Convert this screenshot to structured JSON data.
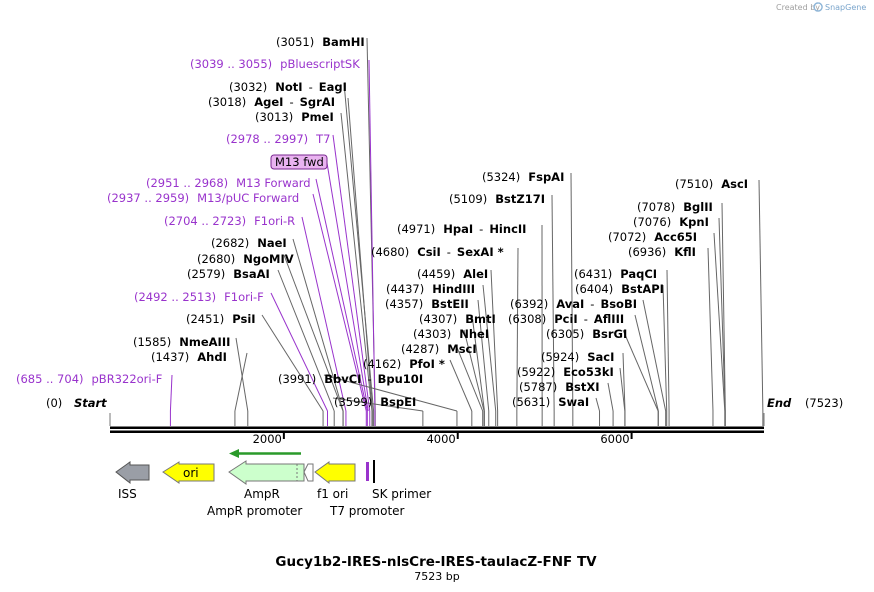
{
  "credit": {
    "text": "Created by",
    "brand": "SnapGene"
  },
  "title": "Gucy1b2-IRES-nlsCre-IRES-taulacZ-FNF TV",
  "length_label": "7523 bp",
  "total_bp": 7523,
  "ends": {
    "start_pos": "(0)",
    "start": "Start",
    "end": "End",
    "end_pos": "(7523)"
  },
  "ruler": [
    {
      "bp": 2000,
      "label": "2000"
    },
    {
      "bp": 4000,
      "label": "4000"
    },
    {
      "bp": 6000,
      "label": "6000"
    }
  ],
  "sites": [
    {
      "pos": "(3051)",
      "name": "BamHI",
      "bp": 3051,
      "kind": "enzyme"
    },
    {
      "pos": "(3039 .. 3055)",
      "name": "pBluescriptSK",
      "bp": 3047,
      "kind": "primer"
    },
    {
      "pos": "(3032)",
      "name": "NotI",
      "name2": "EagI",
      "bp": 3032,
      "kind": "enzyme"
    },
    {
      "pos": "(3018)",
      "name": "AgeI",
      "name2": "SgrAI",
      "bp": 3018,
      "kind": "enzyme"
    },
    {
      "pos": "(3013)",
      "name": "PmeI",
      "bp": 3013,
      "kind": "enzyme"
    },
    {
      "pos": "(2978 .. 2997)",
      "name": "T7",
      "bp": 2988,
      "kind": "primer"
    },
    {
      "pos": "",
      "name": "M13 fwd",
      "bp": 2970,
      "kind": "boxed"
    },
    {
      "pos": "(2951 .. 2968)",
      "name": "M13 Forward",
      "bp": 2960,
      "kind": "primer"
    },
    {
      "pos": "(2937 .. 2959)",
      "name": "M13/pUC Forward",
      "bp": 2948,
      "kind": "primer"
    },
    {
      "pos": "(2704 .. 2723)",
      "name": "F1ori-R",
      "bp": 2714,
      "kind": "primer"
    },
    {
      "pos": "(2682)",
      "name": "NaeI",
      "bp": 2682,
      "kind": "enzyme"
    },
    {
      "pos": "(2680)",
      "name": "NgoMIV",
      "bp": 2680,
      "kind": "enzyme"
    },
    {
      "pos": "(2579)",
      "name": "BsaAI",
      "bp": 2579,
      "kind": "enzyme"
    },
    {
      "pos": "(2492 .. 2513)",
      "name": "F1ori-F",
      "bp": 2502,
      "kind": "primer"
    },
    {
      "pos": "(2451)",
      "name": "PsiI",
      "bp": 2451,
      "kind": "enzyme"
    },
    {
      "pos": "(1585)",
      "name": "NmeAIII",
      "bp": 1585,
      "kind": "enzyme"
    },
    {
      "pos": "(1437)",
      "name": "AhdI",
      "bp": 1437,
      "kind": "enzyme"
    },
    {
      "pos": "(685 .. 704)",
      "name": "pBR322ori-F",
      "bp": 695,
      "kind": "primer"
    },
    {
      "pos": "(3991)",
      "name": "BbvCI",
      "name2": "Bpu10I",
      "bp": 3991,
      "kind": "enzyme"
    },
    {
      "pos": "(3599)",
      "name": "BspEI",
      "bp": 3599,
      "kind": "enzyme"
    },
    {
      "pos": "(4680)",
      "name": "CsiI",
      "name2": "SexAI *",
      "bp": 4680,
      "kind": "enzyme"
    },
    {
      "pos": "(4971)",
      "name": "HpaI",
      "name2": "HincII",
      "bp": 4971,
      "kind": "enzyme"
    },
    {
      "pos": "(5109)",
      "name": "BstZ17I",
      "bp": 5109,
      "kind": "enzyme"
    },
    {
      "pos": "(5324)",
      "name": "FspAI",
      "bp": 5324,
      "kind": "enzyme"
    },
    {
      "pos": "(4459)",
      "name": "AleI",
      "bp": 4459,
      "kind": "enzyme"
    },
    {
      "pos": "(4437)",
      "name": "HindIII",
      "bp": 4437,
      "kind": "enzyme"
    },
    {
      "pos": "(4357)",
      "name": "BstEII",
      "bp": 4357,
      "kind": "enzyme"
    },
    {
      "pos": "(4307)",
      "name": "BmtI",
      "bp": 4307,
      "kind": "enzyme"
    },
    {
      "pos": "(4303)",
      "name": "NheI",
      "bp": 4303,
      "kind": "enzyme"
    },
    {
      "pos": "(4287)",
      "name": "MscI",
      "bp": 4287,
      "kind": "enzyme"
    },
    {
      "pos": "(4162)",
      "name": "PfoI *",
      "bp": 4162,
      "kind": "enzyme"
    },
    {
      "pos": "(6392)",
      "name": "AvaI",
      "name2": "BsoBI",
      "bp": 6392,
      "kind": "enzyme"
    },
    {
      "pos": "(6308)",
      "name": "PciI",
      "name2": "AflIII",
      "bp": 6308,
      "kind": "enzyme"
    },
    {
      "pos": "(6305)",
      "name": "BsrGI",
      "bp": 6305,
      "kind": "enzyme"
    },
    {
      "pos": "(5924)",
      "name": "SacI",
      "bp": 5924,
      "kind": "enzyme"
    },
    {
      "pos": "(5922)",
      "name": "Eco53kI",
      "bp": 5922,
      "kind": "enzyme"
    },
    {
      "pos": "(5787)",
      "name": "BstXI",
      "bp": 5787,
      "kind": "enzyme"
    },
    {
      "pos": "(5631)",
      "name": "SwaI",
      "bp": 5631,
      "kind": "enzyme"
    },
    {
      "pos": "(6431)",
      "name": "PaqCI",
      "bp": 6431,
      "kind": "enzyme"
    },
    {
      "pos": "(6404)",
      "name": "BstAPI",
      "bp": 6404,
      "kind": "enzyme"
    },
    {
      "pos": "(7510)",
      "name": "AscI",
      "bp": 7510,
      "kind": "enzyme"
    },
    {
      "pos": "(7078)",
      "name": "BglII",
      "bp": 7078,
      "kind": "enzyme"
    },
    {
      "pos": "(7076)",
      "name": "KpnI",
      "bp": 7076,
      "kind": "enzyme"
    },
    {
      "pos": "(7072)",
      "name": "Acc65I",
      "bp": 7072,
      "kind": "enzyme"
    },
    {
      "pos": "(6936)",
      "name": "KflI",
      "bp": 6936,
      "kind": "enzyme"
    }
  ],
  "features": [
    {
      "name": "ISS",
      "color": "#9a9ea6",
      "start_bp": 0,
      "end_bp": 400,
      "direction": "reverse"
    },
    {
      "name": "ori",
      "color": "#ffff00",
      "start_bp": 600,
      "end_bp": 1190,
      "direction": "reverse"
    },
    {
      "name": "AmpR",
      "color": "#ccffcc",
      "start_bp": 1361,
      "end_bp": 2231,
      "direction": "reverse"
    },
    {
      "name": "AmpR promoter",
      "color": "#ffffff",
      "start_bp": 2231,
      "end_bp": 2336,
      "direction": "reverse"
    },
    {
      "name": "f1 ori",
      "color": "#ffff00",
      "start_bp": 2470,
      "end_bp": 2926,
      "direction": "reverse"
    },
    {
      "name": "T7 promoter",
      "color": "#9933cc",
      "start_bp": 2978,
      "end_bp": 2997,
      "direction": "forward"
    },
    {
      "name": "SK primer",
      "color": "#9933cc",
      "start_bp": 3060,
      "end_bp": 3080,
      "direction": "reverse"
    }
  ],
  "feature_labels": [
    "ISS",
    "AmpR",
    "AmpR promoter",
    "f1 ori",
    "T7 promoter",
    "SK primer"
  ],
  "colors": {
    "primer": "#9933cc",
    "enzyme": "#000000",
    "orf_arrow": "#2a9a2a"
  }
}
